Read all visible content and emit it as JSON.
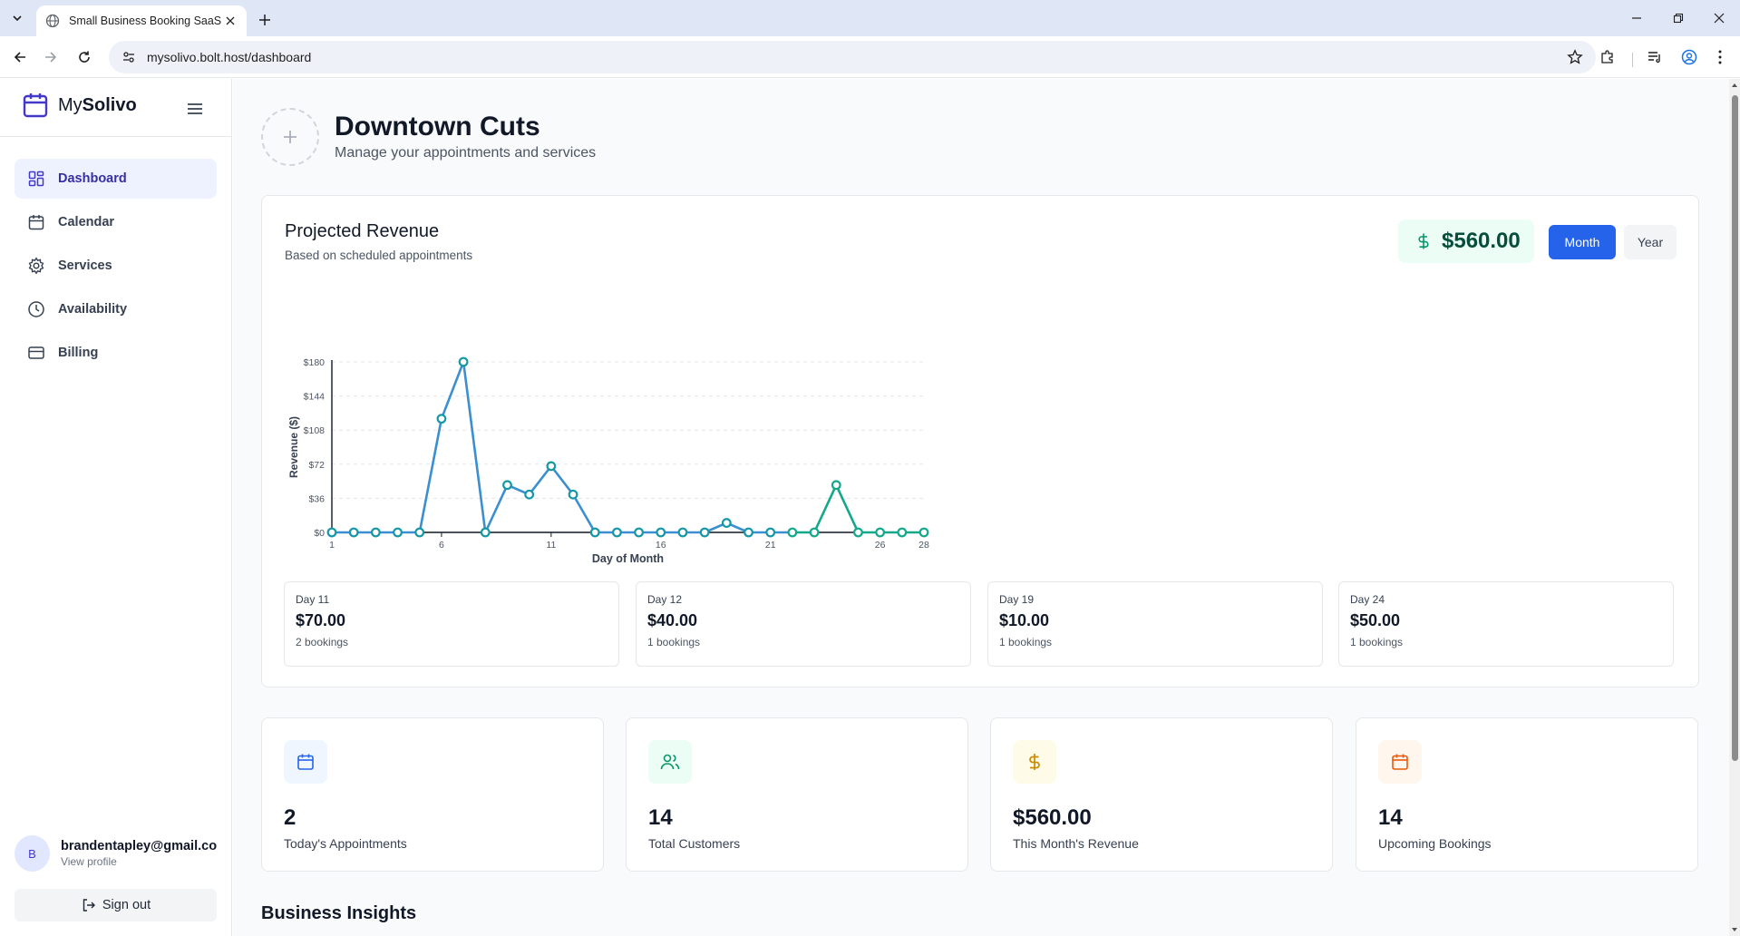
{
  "browser": {
    "tab_title": "Small Business Booking SaaS",
    "url": "mysolivo.bolt.host/dashboard"
  },
  "sidebar": {
    "brand_prefix": "My",
    "brand_name": "Solivo",
    "items": [
      {
        "label": "Dashboard",
        "icon": "dashboard-icon",
        "active": true
      },
      {
        "label": "Calendar",
        "icon": "calendar-icon",
        "active": false
      },
      {
        "label": "Services",
        "icon": "gear-icon",
        "active": false
      },
      {
        "label": "Availability",
        "icon": "clock-icon",
        "active": false
      },
      {
        "label": "Billing",
        "icon": "credit-card-icon",
        "active": false
      }
    ],
    "user": {
      "initial": "B",
      "email": "brandentapley@gmail.com",
      "view_profile": "View profile"
    },
    "sign_out": "Sign out"
  },
  "header": {
    "title": "Downtown Cuts",
    "subtitle": "Manage your appointments and services"
  },
  "revenue": {
    "title": "Projected Revenue",
    "subtitle": "Based on scheduled appointments",
    "total": "$560.00",
    "toggle": {
      "month": "Month",
      "year": "Year",
      "selected": "Month"
    },
    "colors": {
      "line_primary": "#3b8fd0",
      "line_secondary": "#14a88a",
      "accent": "#2563eb"
    },
    "day_cards": [
      {
        "day": "Day 11",
        "amount": "$70.00",
        "bookings": "2 bookings"
      },
      {
        "day": "Day 12",
        "amount": "$40.00",
        "bookings": "1 bookings"
      },
      {
        "day": "Day 19",
        "amount": "$10.00",
        "bookings": "1 bookings"
      },
      {
        "day": "Day 24",
        "amount": "$50.00",
        "bookings": "1 bookings"
      }
    ]
  },
  "chart_data": {
    "type": "line",
    "xlabel": "Day of Month",
    "ylabel": "Revenue ($)",
    "x": [
      1,
      2,
      3,
      4,
      5,
      6,
      7,
      8,
      9,
      10,
      11,
      12,
      13,
      14,
      15,
      16,
      17,
      18,
      19,
      20,
      21,
      22,
      23,
      24,
      25,
      26,
      27,
      28
    ],
    "values": [
      0,
      0,
      0,
      0,
      0,
      120,
      180,
      0,
      50,
      40,
      70,
      40,
      0,
      0,
      0,
      0,
      0,
      0,
      10,
      0,
      0,
      0,
      0,
      50,
      0,
      0,
      0,
      0
    ],
    "x_ticks": [
      "1",
      "6",
      "11",
      "16",
      "21",
      "26",
      "28"
    ],
    "y_ticks": [
      "$0",
      "$36",
      "$72",
      "$108",
      "$144",
      "$180"
    ],
    "ylim": [
      0,
      180
    ],
    "grid": true
  },
  "stats": [
    {
      "value": "2",
      "label": "Today's Appointments",
      "icon": "calendar-icon",
      "bg": "#eff6ff",
      "color": "#2563eb"
    },
    {
      "value": "14",
      "label": "Total Customers",
      "icon": "users-icon",
      "bg": "#ecfdf5",
      "color": "#059669"
    },
    {
      "value": "$560.00",
      "label": "This Month's Revenue",
      "icon": "dollar-icon",
      "bg": "#fefce8",
      "color": "#ca8a04"
    },
    {
      "value": "14",
      "label": "Upcoming Bookings",
      "icon": "calendar-icon",
      "bg": "#fff7ed",
      "color": "#ea580c"
    }
  ],
  "section": {
    "insights_title": "Business Insights"
  }
}
